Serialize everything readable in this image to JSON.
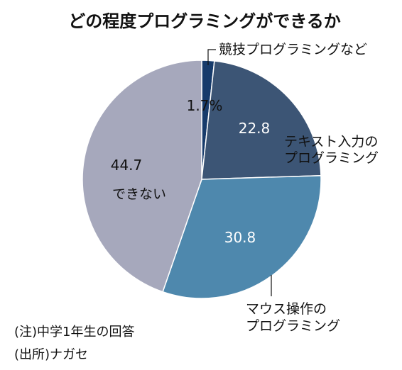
{
  "chart_data": {
    "type": "pie",
    "title": "どの程度プログラミングができるか",
    "slices": [
      {
        "label": "競技プログラミングなど",
        "value": 1.7,
        "value_label": "1.7%",
        "color": "#173b6b"
      },
      {
        "label_lines": [
          "テキスト入力の",
          "プログラミング"
        ],
        "value": 22.8,
        "value_label": "22.8",
        "color": "#3c5575"
      },
      {
        "label_lines": [
          "マウス操作の",
          "プログラミング"
        ],
        "value": 30.8,
        "value_label": "30.8",
        "color": "#4e88ad"
      },
      {
        "label": "できない",
        "value": 44.7,
        "value_label": "44.7",
        "color": "#a6a8bc"
      }
    ],
    "start_angle": "12 o'clock",
    "direction": "clockwise",
    "legend": "none"
  },
  "notes": {
    "note1": "(注)中学1年生の回答",
    "note2": "(出所)ナガセ"
  }
}
